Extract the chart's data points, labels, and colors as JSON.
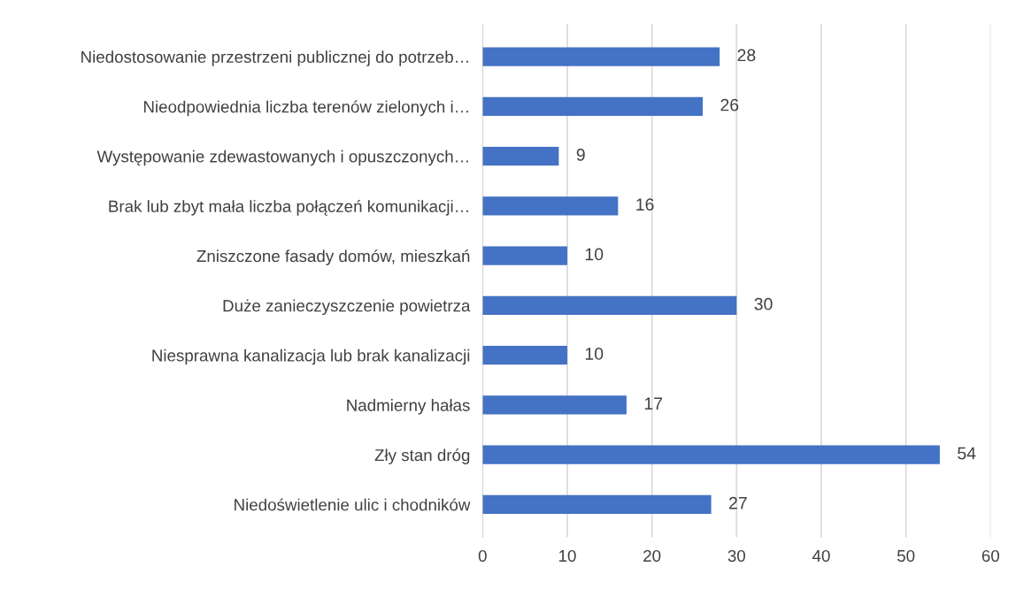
{
  "chart_data": {
    "type": "bar",
    "orientation": "horizontal",
    "categories": [
      "Niedostosowanie przestrzeni publicznej do potrzeb…",
      "Nieodpowiednia liczba terenów zielonych i…",
      "Występowanie zdewastowanych i opuszczonych…",
      "Brak lub zbyt mała liczba połączeń komunikacji…",
      "Zniszczone fasady domów, mieszkań",
      "Duże zanieczyszczenie powietrza",
      "Niesprawna kanalizacja lub brak kanalizacji",
      "Nadmierny hałas",
      "Zły stan dróg",
      "Niedoświetlenie ulic i chodników"
    ],
    "values": [
      28,
      26,
      9,
      16,
      10,
      30,
      10,
      17,
      54,
      27
    ],
    "color": "#4472c4",
    "xlim": [
      0,
      60
    ],
    "xticks": [
      0,
      10,
      20,
      30,
      40,
      50,
      60
    ],
    "grid": "x",
    "data_labels": true
  }
}
